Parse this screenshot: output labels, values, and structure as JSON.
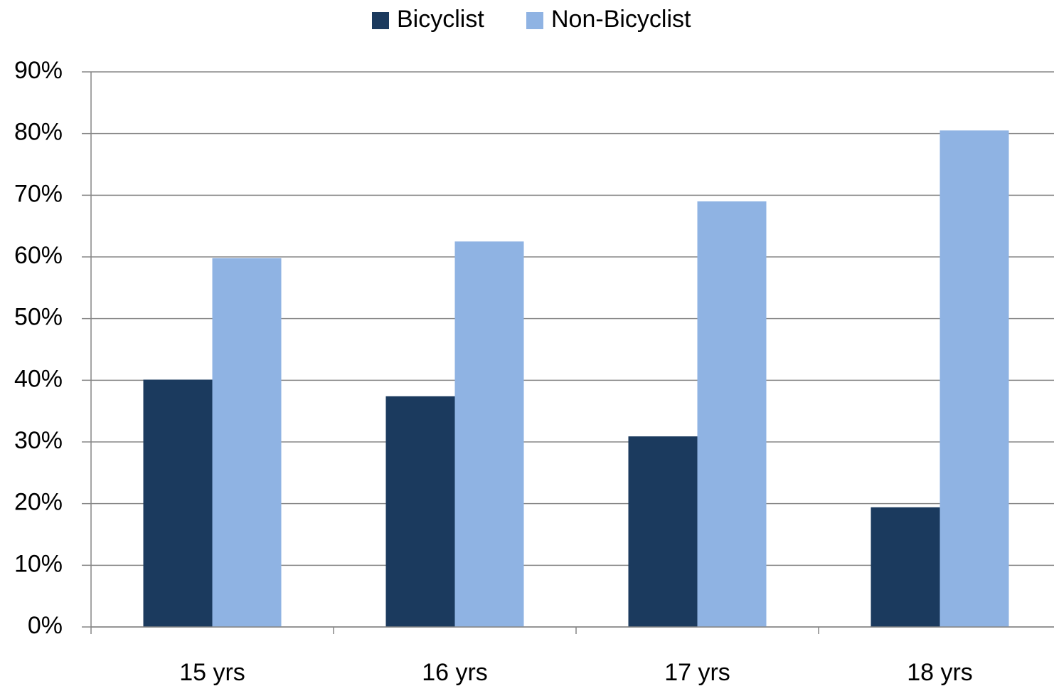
{
  "chart_data": {
    "type": "bar",
    "categories": [
      "15 yrs",
      "16 yrs",
      "17 yrs",
      "18 yrs"
    ],
    "series": [
      {
        "name": "Bicyclist",
        "color": "#1b3a5e",
        "values": [
          40.1,
          37.4,
          30.9,
          19.4
        ]
      },
      {
        "name": "Non-Bicyclist",
        "color": "#8fb3e3",
        "values": [
          59.8,
          62.5,
          69.0,
          80.5
        ]
      }
    ],
    "ylim": [
      0,
      90
    ],
    "yticks": [
      {
        "value": 0,
        "label": "0%"
      },
      {
        "value": 10,
        "label": "10%"
      },
      {
        "value": 20,
        "label": "20%"
      },
      {
        "value": 30,
        "label": "30%"
      },
      {
        "value": 40,
        "label": "40%"
      },
      {
        "value": 50,
        "label": "50%"
      },
      {
        "value": 60,
        "label": "60%"
      },
      {
        "value": 70,
        "label": "70%"
      },
      {
        "value": 80,
        "label": "80%"
      },
      {
        "value": 90,
        "label": "90%"
      }
    ],
    "grid": true,
    "legend": "top"
  }
}
